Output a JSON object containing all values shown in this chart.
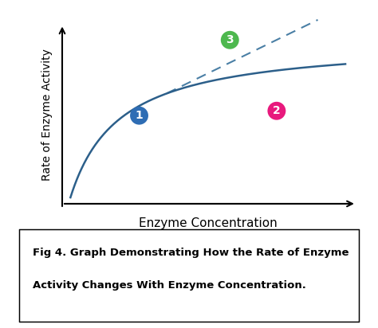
{
  "background_color": "#ffffff",
  "curve_color": "#2c5f8a",
  "dashed_color": "#4a7fa5",
  "xlabel": "Enzyme Concentration",
  "ylabel": "Rate of Enzyme Activity",
  "xlabel_fontsize": 11,
  "ylabel_fontsize": 10,
  "circle1_color": "#2e6db4",
  "circle2_color": "#e8197d",
  "circle3_color": "#4db84e",
  "circle1_label": "1",
  "circle2_label": "2",
  "circle3_label": "3",
  "caption_line1": "Fig 4. Graph Demonstrating How the Rate of Enzyme",
  "caption_line2": "Activity Changes With Enzyme Concentration.",
  "caption_fontsize": 9.5
}
